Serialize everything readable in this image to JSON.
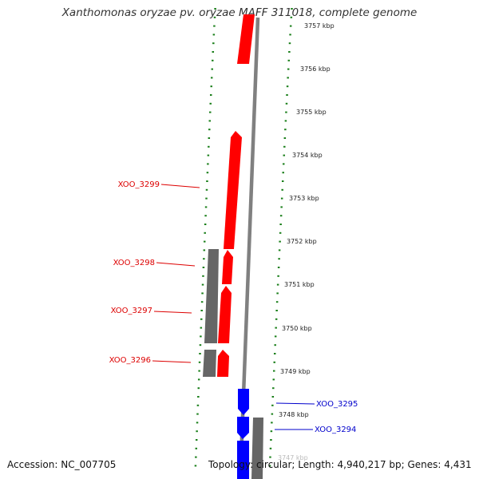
{
  "title": "Xanthomonas oryzae pv. oryzae MAFF 311018, complete genome",
  "footer": {
    "accession": "Accession: NC_007705",
    "topology": "Topology: circular; Length: 4,940,217 bp; Genes: 4,431"
  },
  "colors": {
    "forward_gene": "#ff0000",
    "reverse_gene": "#0000ff",
    "other_feature": "#666666",
    "backbone": "#808080",
    "ticks": "#1a7f1a",
    "forward_label": "#dd0000",
    "reverse_label": "#0000cc"
  },
  "scale": {
    "unit": "kbp",
    "ticks": [
      "3757 kbp",
      "3756 kbp",
      "3755 kbp",
      "3754 kbp",
      "3753 kbp",
      "3752 kbp",
      "3751 kbp",
      "3750 kbp",
      "3749 kbp",
      "3748 kbp",
      "3747 kbp"
    ]
  },
  "genes": [
    {
      "label": "XOO_3299",
      "strand": "forward"
    },
    {
      "label": "XOO_3298",
      "strand": "forward"
    },
    {
      "label": "XOO_3297",
      "strand": "forward"
    },
    {
      "label": "XOO_3296",
      "strand": "forward"
    },
    {
      "label": "XOO_3295",
      "strand": "reverse"
    },
    {
      "label": "XOO_3294",
      "strand": "reverse"
    }
  ]
}
